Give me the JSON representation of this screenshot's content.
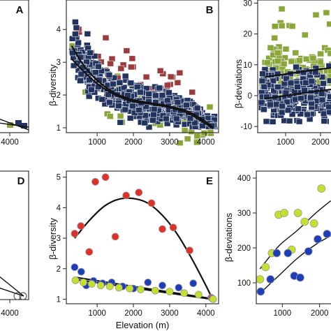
{
  "colors": {
    "navy": "#22335e",
    "green": "#8aa634",
    "maroon": "#9c3b3b",
    "red": "#e0302a",
    "blue": "#1c3fb8",
    "lime": "#c3e02c"
  },
  "chart_data": [
    {
      "id": "A",
      "type": "scatter",
      "panel_label": "A",
      "xticks": [
        "4000"
      ],
      "yticks": [],
      "note": "partially visible, cropped at left edge"
    },
    {
      "id": "B",
      "type": "scatter",
      "panel_label": "B",
      "xlabel": "",
      "ylabel": "β-diversity",
      "xlim": [
        150,
        4350
      ],
      "ylim": [
        0.85,
        4.9
      ],
      "xticks": [
        "1000",
        "2000",
        "3000",
        "4000"
      ],
      "yticks": [
        "1",
        "2",
        "3",
        "4"
      ],
      "marker": "square",
      "series": [
        {
          "color_key": "navy",
          "density": "dense",
          "range_note": "main cloud"
        },
        {
          "color_key": "green",
          "range_note": "low values"
        },
        {
          "color_key": "maroon",
          "range_note": "high values"
        }
      ],
      "fits": [
        {
          "x": [
            300,
            600,
            1000,
            1500,
            2000,
            2500,
            3000,
            3500,
            4000,
            4200
          ],
          "y": [
            3.5,
            2.95,
            2.45,
            2.05,
            1.85,
            1.75,
            1.65,
            1.5,
            1.18,
            1.0
          ]
        },
        {
          "x": [
            300,
            600,
            1000,
            1500,
            2000,
            2500,
            3000,
            3500,
            4000,
            4200
          ],
          "y": [
            3.1,
            2.75,
            2.35,
            2.0,
            1.8,
            1.72,
            1.62,
            1.45,
            1.12,
            0.97
          ]
        }
      ]
    },
    {
      "id": "C",
      "type": "scatter",
      "panel_label": "",
      "xlabel": "",
      "ylabel": "β-deviations",
      "xlim": [
        200,
        2400
      ],
      "ylim": [
        -12,
        31
      ],
      "xticks": [
        "1000",
        "2000"
      ],
      "yticks": [
        "-10",
        "0",
        "10",
        "20",
        "30"
      ],
      "marker": "square",
      "series": [
        {
          "color_key": "green"
        },
        {
          "color_key": "navy"
        }
      ],
      "fits": [
        {
          "x": [
            400,
            1000,
            1600,
            2300
          ],
          "y": [
            6,
            7,
            8,
            9
          ]
        },
        {
          "x": [
            400,
            1000,
            1600,
            2300
          ],
          "y": [
            -1,
            0,
            1,
            2
          ]
        }
      ]
    },
    {
      "id": "D",
      "type": "line",
      "panel_label": "D",
      "xticks": [
        "4000"
      ],
      "yticks": [],
      "note": "partially visible, cropped at left edge"
    },
    {
      "id": "E",
      "type": "scatter",
      "panel_label": "E",
      "xlabel": "Elevation (m)",
      "ylabel": "β-diversity",
      "xlim": [
        150,
        4350
      ],
      "ylim": [
        0.85,
        5.2
      ],
      "xticks": [
        "1000",
        "2000",
        "3000",
        "4000"
      ],
      "yticks": [
        "1",
        "2",
        "3",
        "4",
        "5"
      ],
      "marker": "circle",
      "series": [
        {
          "color_key": "red",
          "x": [
            380,
            550,
            780,
            950,
            1230,
            1500,
            1800,
            2150,
            2500,
            2800,
            3100,
            3550,
            4150
          ],
          "y": [
            3.15,
            3.4,
            2.55,
            4.85,
            5.0,
            3.05,
            4.4,
            4.5,
            4.15,
            3.3,
            3.35,
            2.6,
            1.05
          ]
        },
        {
          "color_key": "blue",
          "x": [
            380,
            560,
            700,
            900,
            1150,
            1400,
            1700,
            2000,
            2400,
            2800,
            3250,
            3650,
            4180
          ],
          "y": [
            2.05,
            1.9,
            1.45,
            1.6,
            1.52,
            1.55,
            1.42,
            1.35,
            1.55,
            1.45,
            1.38,
            1.52,
            1.02
          ]
        },
        {
          "color_key": "lime",
          "x": [
            400,
            620,
            850,
            1100,
            1350,
            1600,
            1900,
            2200,
            2600,
            3000,
            3400,
            3800,
            4200
          ],
          "y": [
            1.62,
            1.55,
            1.5,
            1.45,
            1.42,
            1.38,
            1.35,
            1.32,
            1.28,
            1.25,
            1.2,
            1.15,
            1.0
          ]
        }
      ],
      "fits": [
        {
          "x": [
            380,
            800,
            1200,
            1600,
            2000,
            2400,
            2800,
            3200,
            3600,
            4000,
            4200
          ],
          "y": [
            3.0,
            3.6,
            4.05,
            4.28,
            4.3,
            4.15,
            3.75,
            3.15,
            2.35,
            1.45,
            0.95
          ]
        },
        {
          "x": [
            380,
            4150
          ],
          "y": [
            1.72,
            1.02
          ]
        },
        {
          "x": [
            380,
            4150
          ],
          "y": [
            1.65,
            1.0
          ]
        }
      ]
    },
    {
      "id": "F",
      "type": "scatter",
      "panel_label": "",
      "xlabel": "",
      "ylabel": "β-deviations",
      "xlim": [
        300,
        2400
      ],
      "ylim": [
        40,
        420
      ],
      "xticks": [
        "1000",
        "2000"
      ],
      "yticks": [
        "100",
        "200",
        "300",
        "400"
      ],
      "marker": "circle",
      "series": [
        {
          "color_key": "lime",
          "x": [
            400,
            550,
            720,
            900,
            1050,
            1250,
            1420,
            1600,
            1850,
            2050
          ],
          "y": [
            110,
            145,
            185,
            295,
            300,
            195,
            300,
            275,
            270,
            370
          ]
        },
        {
          "color_key": "blue",
          "x": [
            420,
            680,
            850,
            1150,
            1320,
            1480,
            1700,
            1950,
            2200
          ],
          "y": [
            75,
            110,
            185,
            185,
            120,
            115,
            190,
            225,
            240
          ]
        }
      ],
      "fits": [
        {
          "x": [
            400,
            900,
            1400,
            1900,
            2300
          ],
          "y": [
            140,
            205,
            250,
            300,
            335
          ]
        },
        {
          "x": [
            400,
            900,
            1400,
            1900,
            2300
          ],
          "y": [
            70,
            120,
            170,
            210,
            235
          ]
        }
      ]
    }
  ]
}
